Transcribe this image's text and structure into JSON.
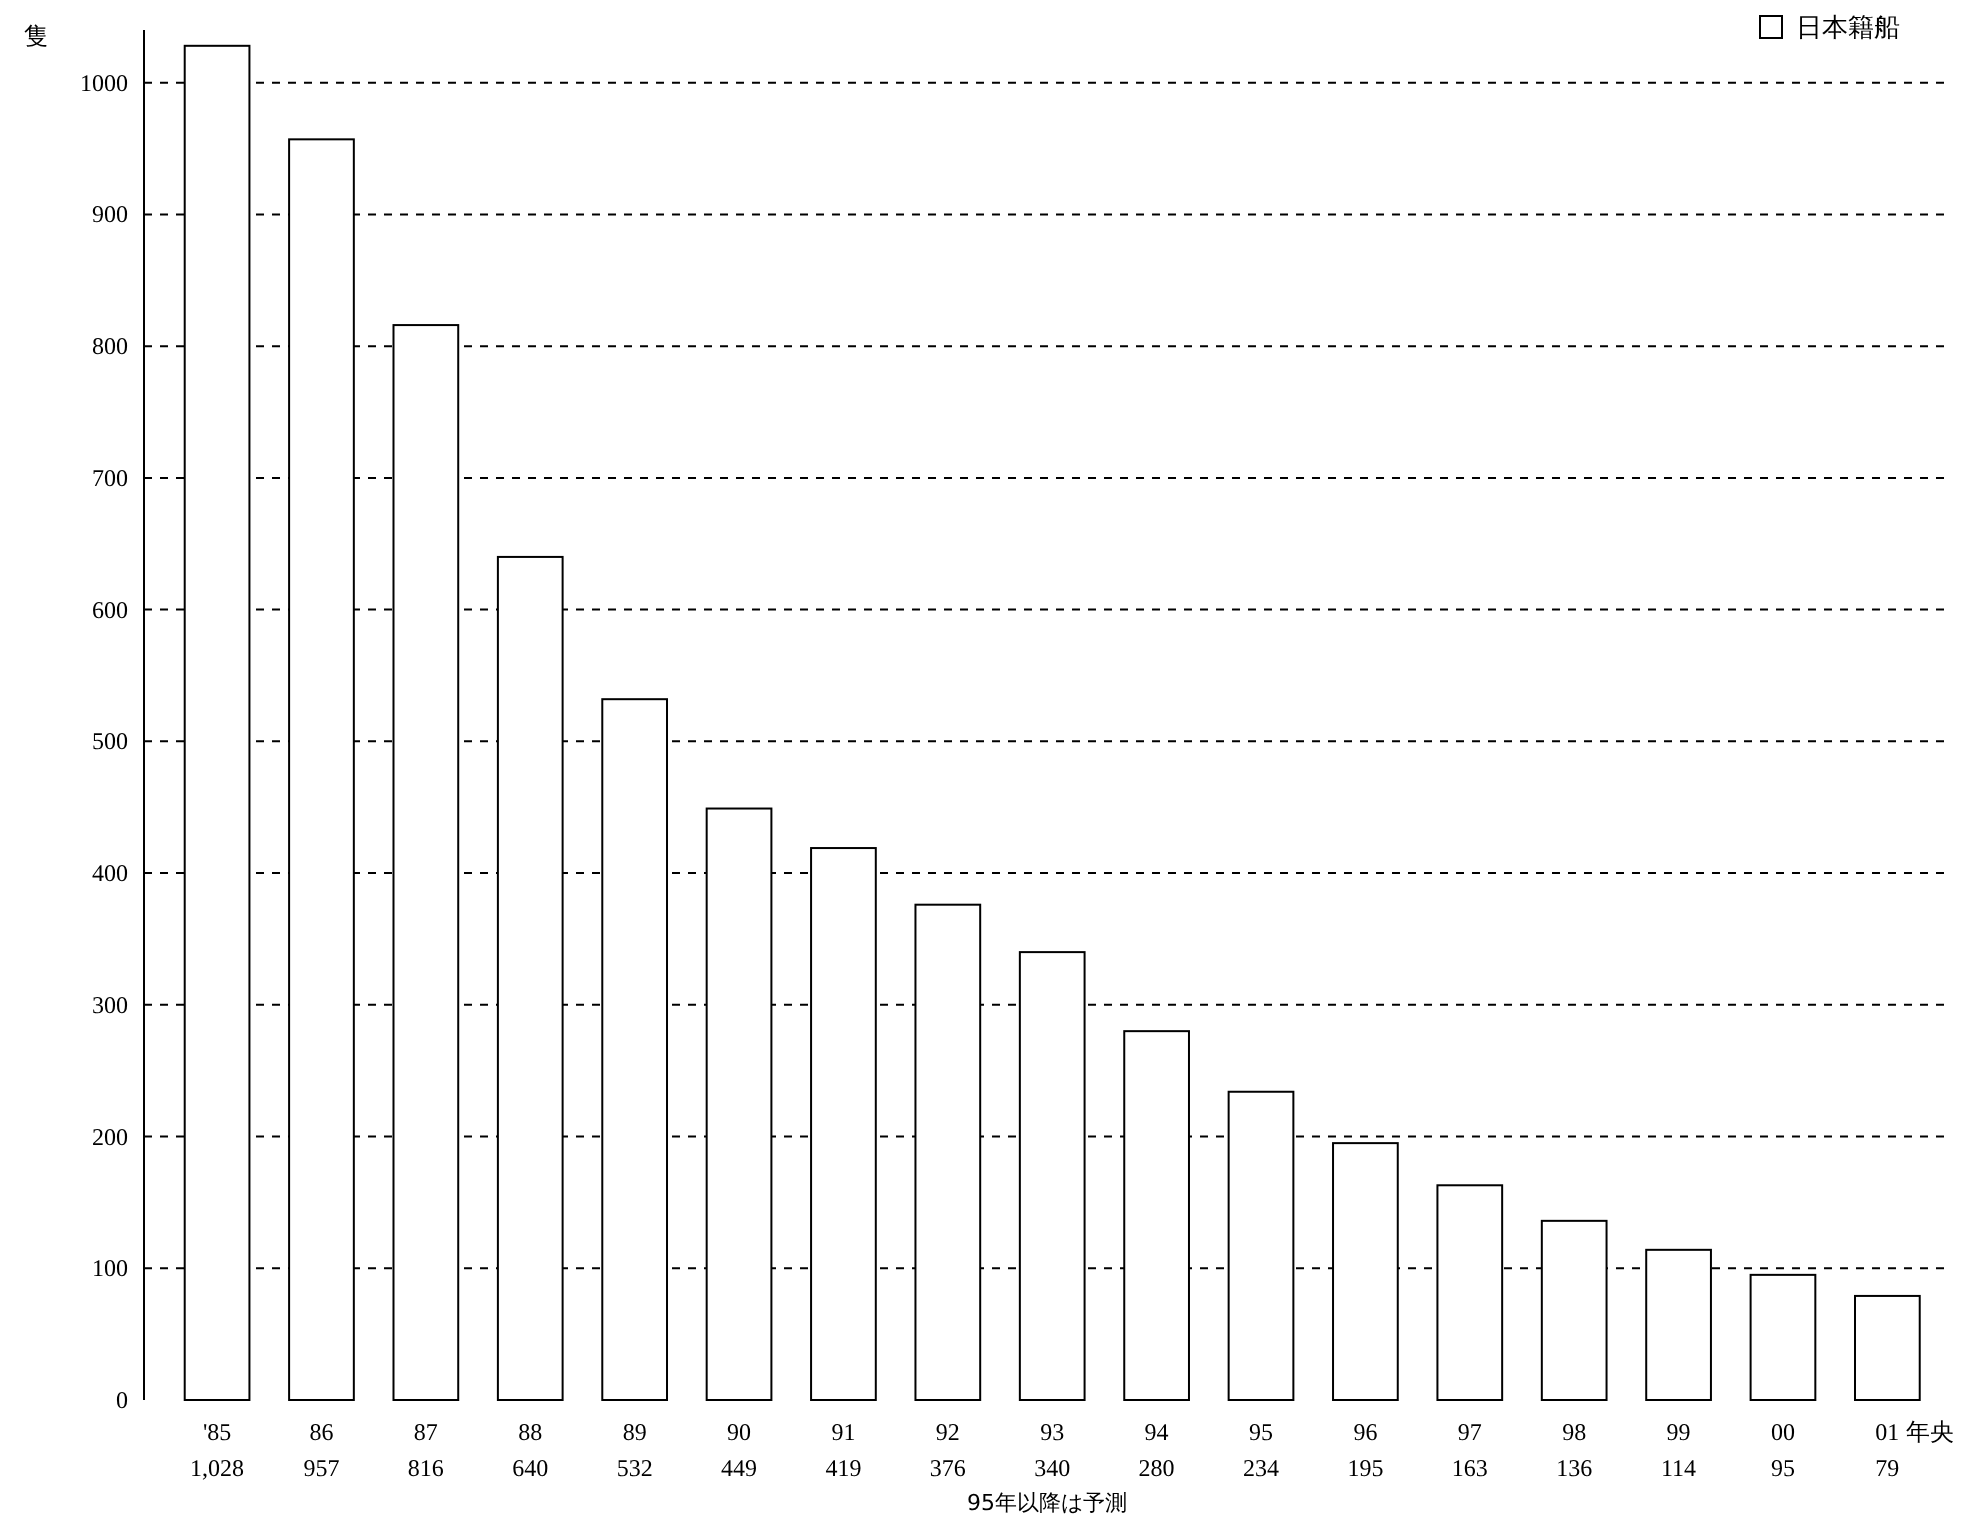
{
  "chart_data": {
    "type": "bar",
    "ylabel": "隻",
    "xlabel": "年央",
    "categories": [
      "'85",
      "86",
      "87",
      "88",
      "89",
      "90",
      "91",
      "92",
      "93",
      "94",
      "95",
      "96",
      "97",
      "98",
      "99",
      "00",
      "01"
    ],
    "series": [
      {
        "name": "日本籍船",
        "color": "#ffffff",
        "values": [
          1028,
          957,
          816,
          640,
          532,
          449,
          419,
          376,
          340,
          280,
          234,
          195,
          163,
          136,
          114,
          95,
          79
        ]
      }
    ],
    "ylim": [
      0,
      1040
    ],
    "yticks": [
      0,
      100,
      200,
      300,
      400,
      500,
      600,
      700,
      800,
      900,
      1000
    ],
    "value_labels": [
      "1,028",
      "957",
      "816",
      "640",
      "532",
      "449",
      "419",
      "376",
      "340",
      "280",
      "234",
      "195",
      "163",
      "136",
      "114",
      "95",
      "79"
    ],
    "grid": "y",
    "legend": "top right",
    "annotations": [
      "95年以降は予測"
    ]
  }
}
